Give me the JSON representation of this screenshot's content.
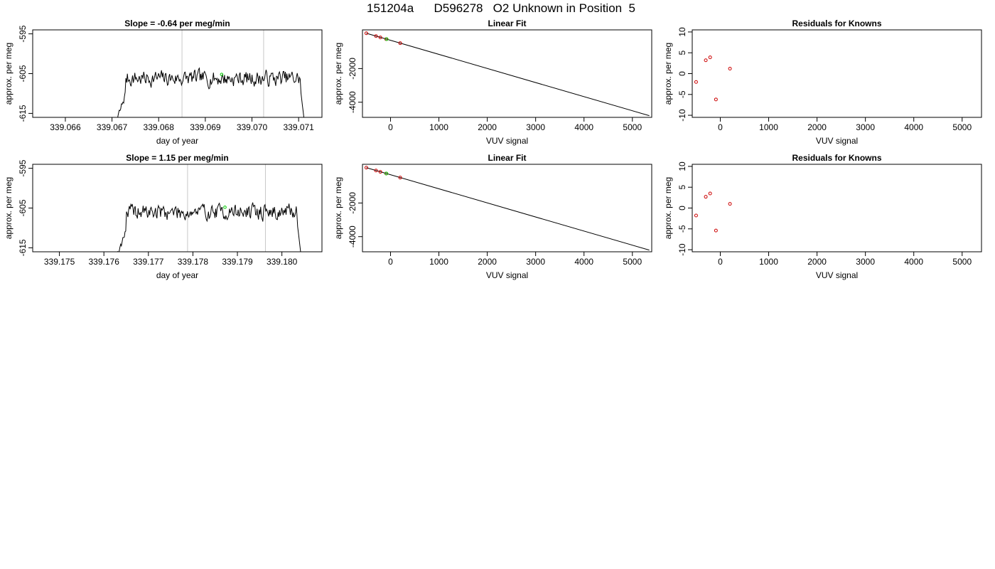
{
  "title": "151204a      D596278   O2 Unknown in Position  5",
  "colors": {
    "line": "#000000",
    "known": "#cc0000",
    "unknown": "#00cc00",
    "marker": "#c8c8c8"
  },
  "chart_data": [
    {
      "id": "trace-1",
      "type": "line",
      "title": "Slope =  -0.64  per meg/min",
      "xlabel": "day of year",
      "ylabel": "approx. per meg",
      "xlim": [
        339.0653,
        339.0715
      ],
      "ylim": [
        -616,
        -594
      ],
      "xticks": [
        339.066,
        339.067,
        339.068,
        339.069,
        339.07,
        339.071
      ],
      "xtick_labels": [
        "339.066",
        "339.067",
        "339.068",
        "339.069",
        "339.070",
        "339.071"
      ],
      "yticks": [
        -615,
        -605,
        -595
      ],
      "ytick_labels": [
        "-615",
        "-605",
        "-595"
      ],
      "start": 339.0669,
      "end": 339.0712,
      "step": 1.59e-05,
      "level": -606.2,
      "seed": 7,
      "vlines": [
        339.0685,
        339.07025
      ],
      "unknown_point": {
        "x": 339.06935,
        "y": -605.2
      }
    },
    {
      "id": "fit-1",
      "type": "scatter",
      "title": "Linear Fit",
      "xlabel": "VUV signal",
      "ylabel": "approx. per meg",
      "xlim": [
        -580,
        5400
      ],
      "ylim": [
        -4900,
        300
      ],
      "xticks": [
        0,
        1000,
        2000,
        3000,
        4000,
        5000
      ],
      "xtick_labels": [
        "0",
        "1000",
        "2000",
        "3000",
        "4000",
        "5000"
      ],
      "yticks": [
        -4000,
        -2000
      ],
      "ytick_labels": [
        "-4000",
        "-2000"
      ],
      "fit_line": {
        "x": [
          -500,
          5350
        ],
        "y": [
          100,
          -4800
        ]
      },
      "knowns": [
        {
          "x": -500,
          "y": 100
        },
        {
          "x": -300,
          "y": -70
        },
        {
          "x": -210,
          "y": -150
        },
        {
          "x": -90,
          "y": -250
        },
        {
          "x": 200,
          "y": -490
        }
      ],
      "unknowns": [
        {
          "x": -80,
          "y": -250
        }
      ]
    },
    {
      "id": "resid-1",
      "type": "scatter",
      "title": "Residuals for Knowns",
      "xlabel": "VUV signal",
      "ylabel": "approx. per meg",
      "xlim": [
        -580,
        5400
      ],
      "ylim": [
        -10.5,
        10.5
      ],
      "xticks": [
        0,
        1000,
        2000,
        3000,
        4000,
        5000
      ],
      "xtick_labels": [
        "0",
        "1000",
        "2000",
        "3000",
        "4000",
        "5000"
      ],
      "yticks": [
        -10,
        -5,
        0,
        5,
        10
      ],
      "ytick_labels": [
        "-10",
        "-5",
        "0",
        "5",
        "10"
      ],
      "knowns": [
        {
          "x": -500,
          "y": -2
        },
        {
          "x": -300,
          "y": 3.2
        },
        {
          "x": -210,
          "y": 3.9
        },
        {
          "x": -90,
          "y": -6.2
        },
        {
          "x": 200,
          "y": 1.2
        }
      ]
    },
    {
      "id": "trace-2",
      "type": "line",
      "title": "Slope =  1.15  per meg/min",
      "xlabel": "day of year",
      "ylabel": "approx. per meg",
      "xlim": [
        339.1744,
        339.1809
      ],
      "ylim": [
        -616,
        -594
      ],
      "xticks": [
        339.175,
        339.176,
        339.177,
        339.178,
        339.179,
        339.18
      ],
      "xtick_labels": [
        "339.175",
        "339.176",
        "339.177",
        "339.178",
        "339.179",
        "339.180"
      ],
      "yticks": [
        -615,
        -605,
        -595
      ],
      "ytick_labels": [
        "-615",
        "-605",
        "-595"
      ],
      "start": 339.1761,
      "end": 339.1805,
      "step": 1.63e-05,
      "level": -606.0,
      "seed": 19,
      "vlines": [
        339.17788,
        339.17963
      ],
      "unknown_point": {
        "x": 339.17872,
        "y": -604.8
      }
    },
    {
      "id": "fit-2",
      "type": "scatter",
      "title": "Linear Fit",
      "xlabel": "VUV signal",
      "ylabel": "approx. per meg",
      "xlim": [
        -580,
        5400
      ],
      "ylim": [
        -4900,
        300
      ],
      "xticks": [
        0,
        1000,
        2000,
        3000,
        4000,
        5000
      ],
      "xtick_labels": [
        "0",
        "1000",
        "2000",
        "3000",
        "4000",
        "5000"
      ],
      "yticks": [
        -4000,
        -2000
      ],
      "ytick_labels": [
        "-4000",
        "-2000"
      ],
      "fit_line": {
        "x": [
          -500,
          5350
        ],
        "y": [
          100,
          -4800
        ]
      },
      "knowns": [
        {
          "x": -500,
          "y": 100
        },
        {
          "x": -300,
          "y": -70
        },
        {
          "x": -210,
          "y": -150
        },
        {
          "x": -90,
          "y": -250
        },
        {
          "x": 200,
          "y": -490
        }
      ],
      "unknowns": [
        {
          "x": -85,
          "y": -250
        }
      ]
    },
    {
      "id": "resid-2",
      "type": "scatter",
      "title": "Residuals for Knowns",
      "xlabel": "VUV signal",
      "ylabel": "approx. per meg",
      "xlim": [
        -580,
        5400
      ],
      "ylim": [
        -10.5,
        10.5
      ],
      "xticks": [
        0,
        1000,
        2000,
        3000,
        4000,
        5000
      ],
      "xtick_labels": [
        "0",
        "1000",
        "2000",
        "3000",
        "4000",
        "5000"
      ],
      "yticks": [
        -10,
        -5,
        0,
        5,
        10
      ],
      "ytick_labels": [
        "-10",
        "-5",
        "0",
        "5",
        "10"
      ],
      "knowns": [
        {
          "x": -500,
          "y": -1.8
        },
        {
          "x": -300,
          "y": 2.7
        },
        {
          "x": -210,
          "y": 3.5
        },
        {
          "x": -90,
          "y": -5.4
        },
        {
          "x": 200,
          "y": 1.0
        }
      ]
    }
  ]
}
